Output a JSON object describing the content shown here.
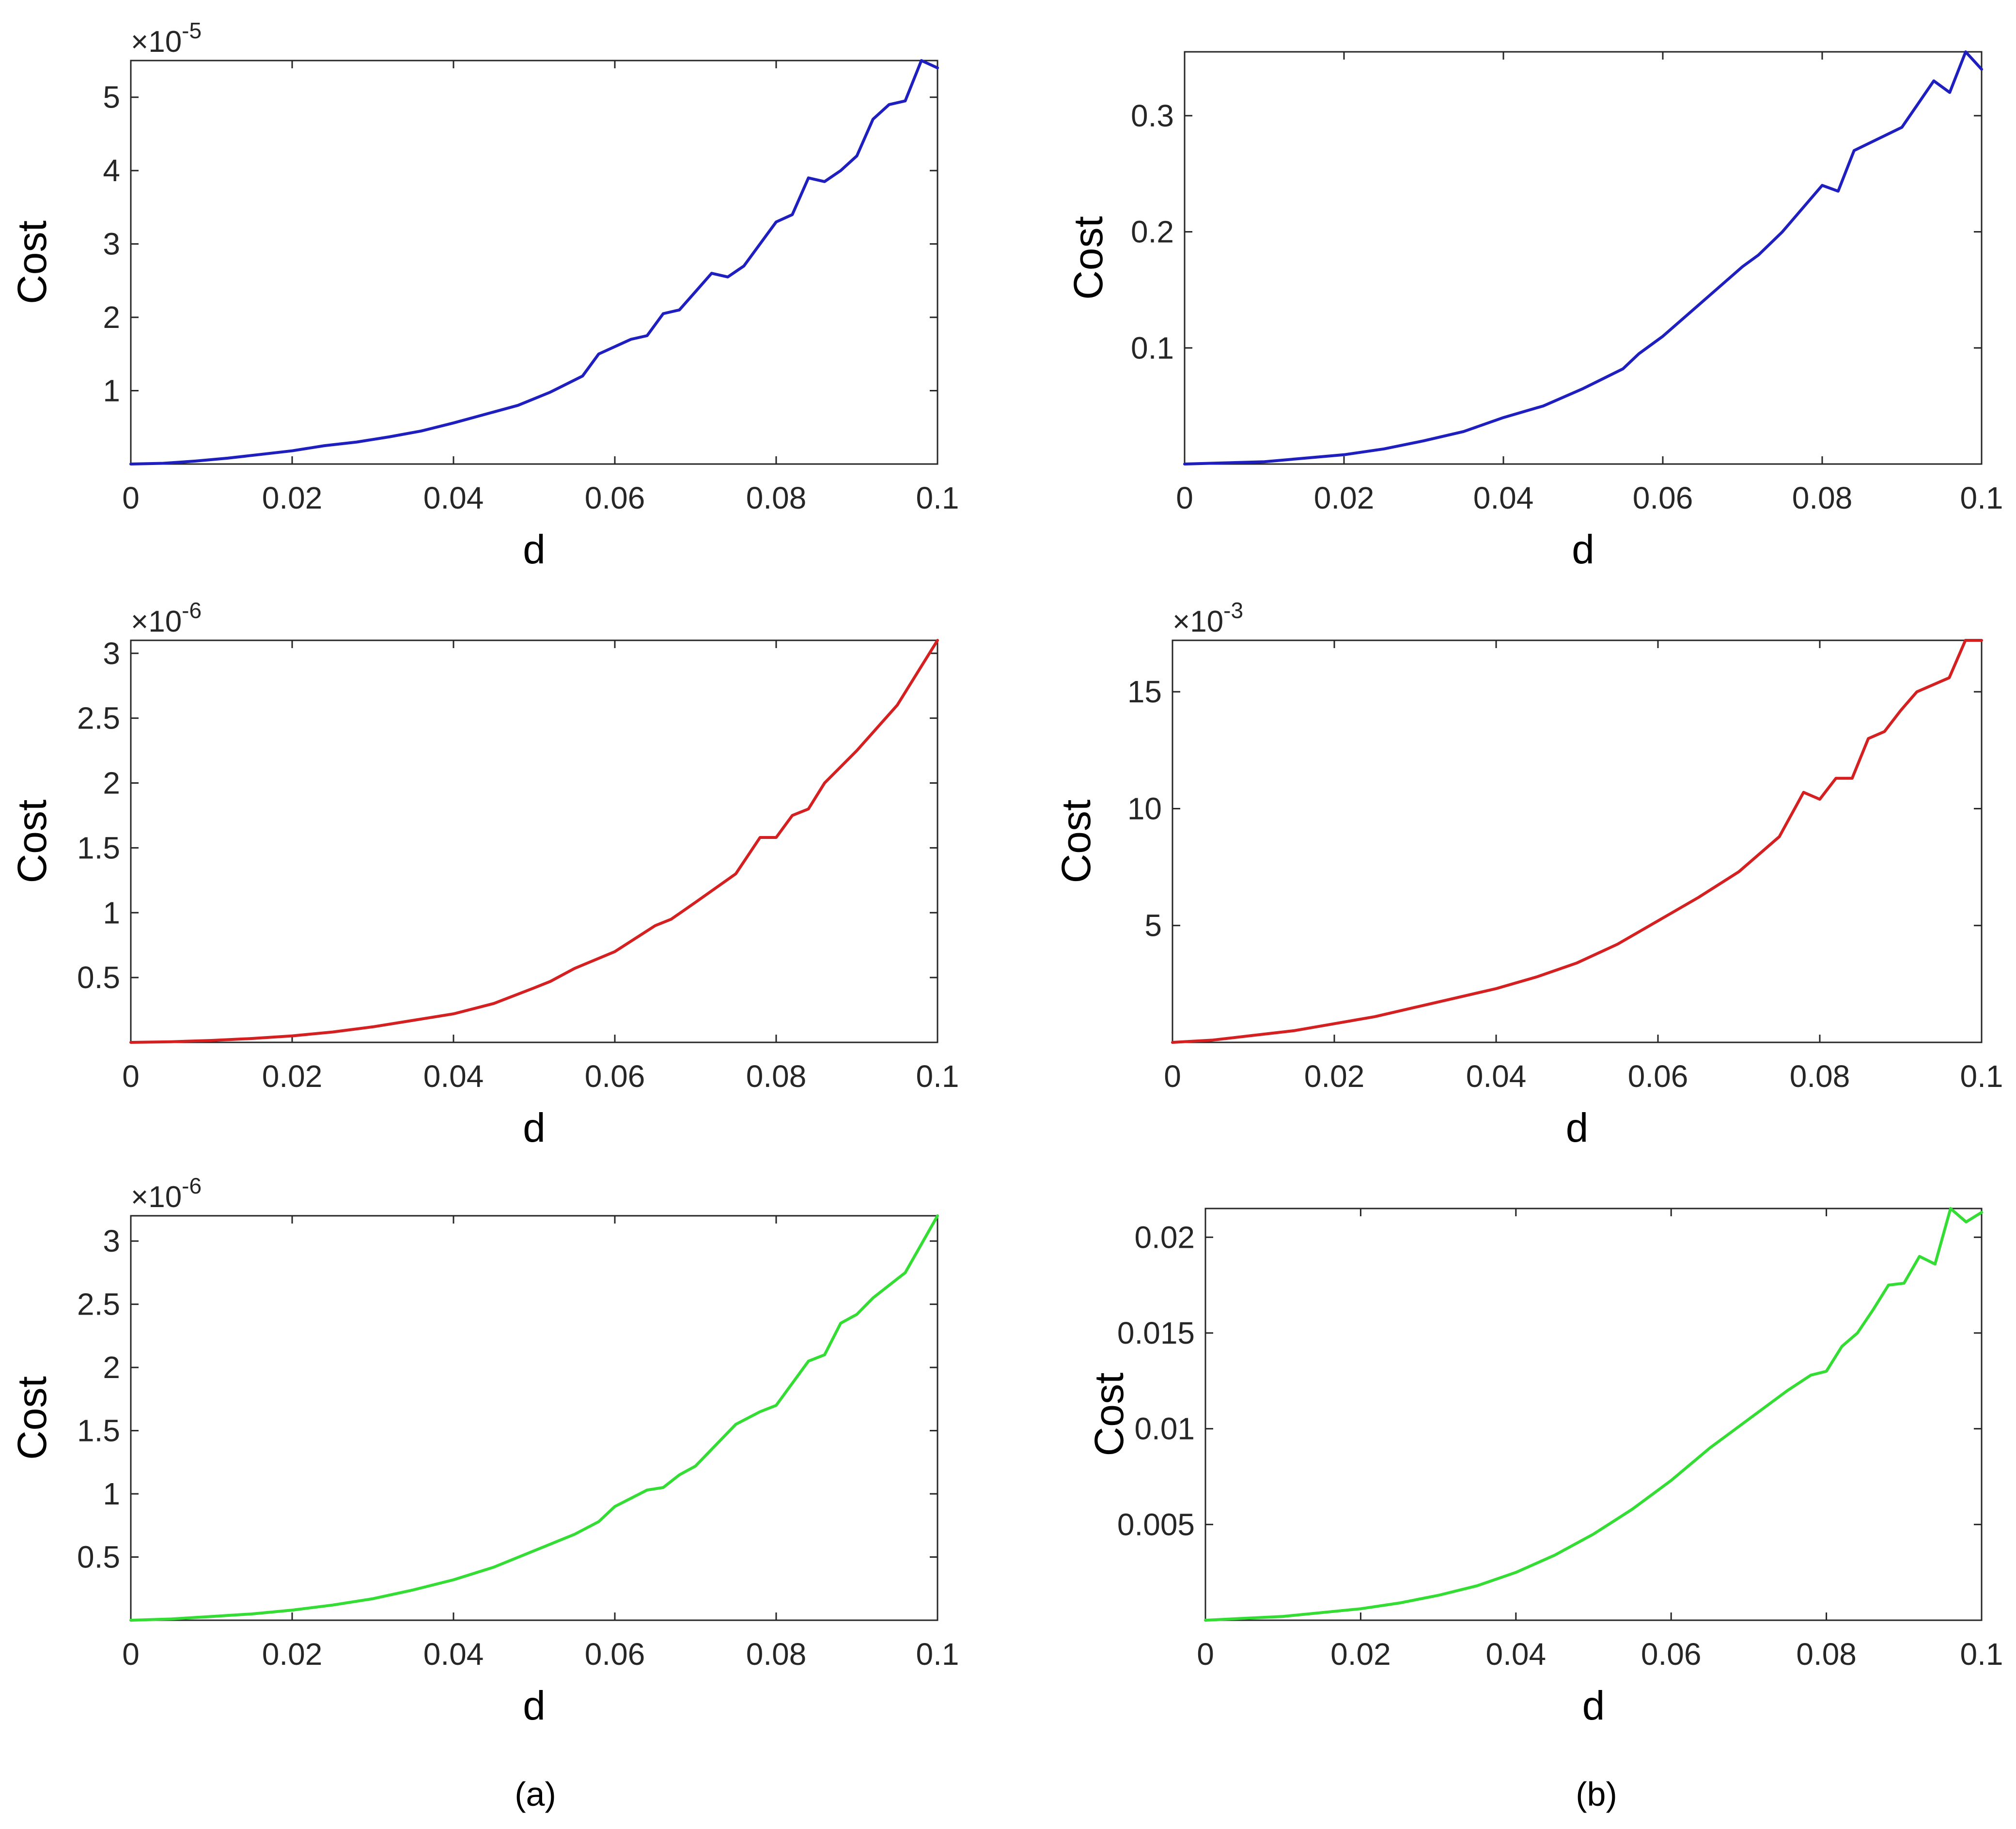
{
  "figure": {
    "panel_labels": [
      "(a)",
      "(b)"
    ]
  },
  "chart_data": [
    {
      "type": "line",
      "panel": "a-top",
      "xlabel": "d",
      "ylabel": "Cost",
      "xlim": [
        0,
        0.1
      ],
      "ylim": [
        0,
        5.5
      ],
      "exponent": "-5",
      "xticks": [
        0,
        0.02,
        0.04,
        0.06,
        0.08,
        0.1
      ],
      "xtick_labels": [
        "0",
        "0.02",
        "0.04",
        "0.06",
        "0.08",
        "0.1"
      ],
      "yticks": [
        1,
        2,
        3,
        4,
        5
      ],
      "ytick_labels": [
        "1",
        "2",
        "3",
        "4",
        "5"
      ],
      "color": "#1f1fbf",
      "x": [
        0,
        0.004,
        0.008,
        0.012,
        0.016,
        0.02,
        0.024,
        0.028,
        0.032,
        0.036,
        0.04,
        0.044,
        0.048,
        0.052,
        0.056,
        0.058,
        0.062,
        0.064,
        0.066,
        0.068,
        0.07,
        0.072,
        0.074,
        0.076,
        0.078,
        0.08,
        0.082,
        0.084,
        0.086,
        0.088,
        0.09,
        0.092,
        0.094,
        0.096,
        0.098,
        0.1
      ],
      "y": [
        0,
        0.01,
        0.04,
        0.08,
        0.13,
        0.18,
        0.25,
        0.3,
        0.37,
        0.45,
        0.56,
        0.68,
        0.8,
        0.98,
        1.2,
        1.5,
        1.7,
        1.75,
        2.05,
        2.1,
        2.35,
        2.6,
        2.55,
        2.7,
        3.0,
        3.3,
        3.4,
        3.9,
        3.85,
        4.0,
        4.2,
        4.7,
        4.9,
        4.95,
        5.5,
        5.4
      ]
    },
    {
      "type": "line",
      "panel": "b-top",
      "xlabel": "d",
      "ylabel": "Cost",
      "xlim": [
        0,
        0.1
      ],
      "ylim": [
        0,
        0.355
      ],
      "xticks": [
        0,
        0.02,
        0.04,
        0.06,
        0.08,
        0.1
      ],
      "xtick_labels": [
        "0",
        "0.02",
        "0.04",
        "0.06",
        "0.08",
        "0.1"
      ],
      "yticks": [
        0.1,
        0.2,
        0.3
      ],
      "ytick_labels": [
        "0.1",
        "0.2",
        "0.3"
      ],
      "color": "#1f1fbf",
      "x": [
        0,
        0.005,
        0.01,
        0.015,
        0.02,
        0.025,
        0.03,
        0.035,
        0.04,
        0.045,
        0.05,
        0.055,
        0.057,
        0.06,
        0.065,
        0.07,
        0.072,
        0.075,
        0.08,
        0.082,
        0.084,
        0.09,
        0.092,
        0.094,
        0.096,
        0.098,
        0.1
      ],
      "y": [
        0,
        0.001,
        0.002,
        0.005,
        0.008,
        0.013,
        0.02,
        0.028,
        0.04,
        0.05,
        0.065,
        0.082,
        0.095,
        0.11,
        0.14,
        0.17,
        0.18,
        0.2,
        0.24,
        0.235,
        0.27,
        0.29,
        0.31,
        0.33,
        0.32,
        0.355,
        0.34
      ]
    },
    {
      "type": "line",
      "panel": "a-middle",
      "xlabel": "d",
      "ylabel": "Cost",
      "xlim": [
        0,
        0.1
      ],
      "ylim": [
        0,
        3.1
      ],
      "exponent": "-6",
      "xticks": [
        0,
        0.02,
        0.04,
        0.06,
        0.08,
        0.1
      ],
      "xtick_labels": [
        "0",
        "0.02",
        "0.04",
        "0.06",
        "0.08",
        "0.1"
      ],
      "yticks": [
        0.5,
        1,
        1.5,
        2,
        2.5,
        3
      ],
      "ytick_labels": [
        "0.5",
        "1",
        "1.5",
        "2",
        "2.5",
        "3"
      ],
      "color": "#d42020",
      "x": [
        0,
        0.005,
        0.01,
        0.015,
        0.02,
        0.025,
        0.03,
        0.035,
        0.04,
        0.045,
        0.05,
        0.052,
        0.055,
        0.06,
        0.065,
        0.067,
        0.07,
        0.075,
        0.078,
        0.08,
        0.082,
        0.084,
        0.086,
        0.09,
        0.095,
        0.098,
        0.1
      ],
      "y": [
        0,
        0.005,
        0.015,
        0.03,
        0.05,
        0.08,
        0.12,
        0.17,
        0.22,
        0.3,
        0.42,
        0.47,
        0.57,
        0.7,
        0.9,
        0.95,
        1.08,
        1.3,
        1.58,
        1.58,
        1.75,
        1.8,
        2.0,
        2.25,
        2.6,
        2.9,
        3.1
      ]
    },
    {
      "type": "line",
      "panel": "b-middle",
      "xlabel": "d",
      "ylabel": "Cost",
      "xlim": [
        0,
        0.1
      ],
      "ylim": [
        0,
        17.2
      ],
      "exponent": "-3",
      "xticks": [
        0,
        0.02,
        0.04,
        0.06,
        0.08,
        0.1
      ],
      "xtick_labels": [
        "0",
        "0.02",
        "0.04",
        "0.06",
        "0.08",
        "0.1"
      ],
      "yticks": [
        5,
        10,
        15
      ],
      "ytick_labels": [
        "5",
        "10",
        "15"
      ],
      "color": "#d42020",
      "x": [
        0,
        0.005,
        0.01,
        0.015,
        0.02,
        0.025,
        0.03,
        0.035,
        0.04,
        0.045,
        0.05,
        0.055,
        0.06,
        0.065,
        0.07,
        0.075,
        0.078,
        0.08,
        0.082,
        0.084,
        0.086,
        0.088,
        0.09,
        0.092,
        0.096,
        0.098,
        0.1
      ],
      "y": [
        0,
        0.1,
        0.3,
        0.5,
        0.8,
        1.1,
        1.5,
        1.9,
        2.3,
        2.8,
        3.4,
        4.2,
        5.2,
        6.2,
        7.3,
        8.8,
        10.7,
        10.4,
        11.3,
        11.3,
        13.0,
        13.3,
        14.2,
        15.0,
        15.6,
        17.2,
        17.2
      ]
    },
    {
      "type": "line",
      "panel": "a-bottom",
      "xlabel": "d",
      "ylabel": "Cost",
      "xlim": [
        0,
        0.1
      ],
      "ylim": [
        0,
        3.2
      ],
      "exponent": "-6",
      "xticks": [
        0,
        0.02,
        0.04,
        0.06,
        0.08,
        0.1
      ],
      "xtick_labels": [
        "0",
        "0.02",
        "0.04",
        "0.06",
        "0.08",
        "0.1"
      ],
      "yticks": [
        0.5,
        1,
        1.5,
        2,
        2.5,
        3
      ],
      "ytick_labels": [
        "0.5",
        "1",
        "1.5",
        "2",
        "2.5",
        "3"
      ],
      "color": "#33dd33",
      "x": [
        0,
        0.005,
        0.01,
        0.015,
        0.02,
        0.025,
        0.03,
        0.035,
        0.04,
        0.045,
        0.05,
        0.055,
        0.058,
        0.06,
        0.064,
        0.066,
        0.068,
        0.07,
        0.075,
        0.078,
        0.08,
        0.084,
        0.086,
        0.088,
        0.09,
        0.092,
        0.096,
        0.1
      ],
      "y": [
        0,
        0.01,
        0.03,
        0.05,
        0.08,
        0.12,
        0.17,
        0.24,
        0.32,
        0.42,
        0.55,
        0.68,
        0.78,
        0.9,
        1.03,
        1.05,
        1.15,
        1.22,
        1.55,
        1.65,
        1.7,
        2.05,
        2.1,
        2.35,
        2.42,
        2.55,
        2.75,
        3.2
      ]
    },
    {
      "type": "line",
      "panel": "b-bottom",
      "xlabel": "d",
      "ylabel": "Cost",
      "xlim": [
        0,
        0.1
      ],
      "ylim": [
        0,
        0.0215
      ],
      "xticks": [
        0,
        0.02,
        0.04,
        0.06,
        0.08,
        0.1
      ],
      "xtick_labels": [
        "0",
        "0.02",
        "0.04",
        "0.06",
        "0.08",
        "0.1"
      ],
      "yticks": [
        0.005,
        0.01,
        0.015,
        0.02
      ],
      "ytick_labels": [
        "0.005",
        "0.01",
        "0.015",
        "0.02"
      ],
      "color": "#33dd33",
      "x": [
        0,
        0.005,
        0.01,
        0.015,
        0.02,
        0.025,
        0.03,
        0.035,
        0.04,
        0.045,
        0.05,
        0.055,
        0.06,
        0.065,
        0.07,
        0.075,
        0.078,
        0.08,
        0.082,
        0.084,
        0.086,
        0.088,
        0.09,
        0.092,
        0.094,
        0.096,
        0.098,
        0.1
      ],
      "y": [
        0,
        0.0001,
        0.0002,
        0.0004,
        0.0006,
        0.0009,
        0.0013,
        0.0018,
        0.0025,
        0.0034,
        0.0045,
        0.0058,
        0.0073,
        0.009,
        0.0105,
        0.012,
        0.0128,
        0.013,
        0.0143,
        0.015,
        0.0162,
        0.0175,
        0.0176,
        0.019,
        0.0186,
        0.0215,
        0.0208,
        0.0213
      ]
    }
  ]
}
